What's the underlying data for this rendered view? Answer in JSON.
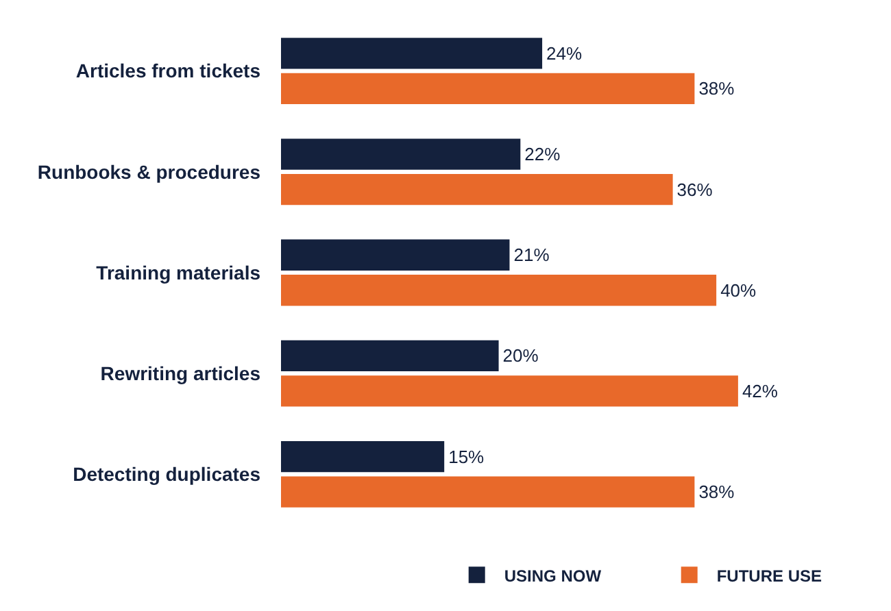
{
  "chart_data": {
    "type": "bar",
    "orientation": "horizontal",
    "categories": [
      "Articles from tickets",
      "Runbooks & procedures",
      "Training materials",
      "Rewriting articles",
      "Detecting duplicates"
    ],
    "series": [
      {
        "name": "USING NOW",
        "color": "#14213d",
        "values": [
          24,
          22,
          21,
          20,
          15
        ],
        "value_labels": [
          "24%",
          "22%",
          "21%",
          "20%",
          "15%"
        ]
      },
      {
        "name": "FUTURE USE",
        "color": "#e8692a",
        "values": [
          38,
          36,
          40,
          42,
          38
        ],
        "value_labels": [
          "38%",
          "36%",
          "40%",
          "42%",
          "38%"
        ]
      }
    ],
    "legend": "bottom right"
  }
}
